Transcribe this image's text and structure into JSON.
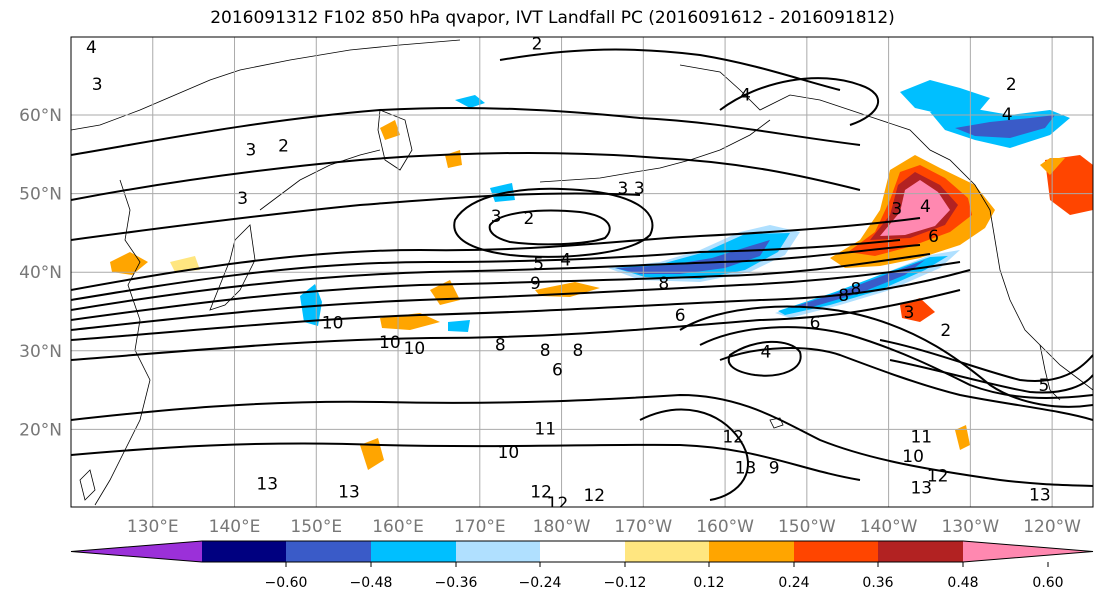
{
  "title": "2016091312 F102 850 hPa qvapor, IVT Landfall PC (2016091612 - 2016091812)",
  "map": {
    "lon_ticks": [
      "130°E",
      "140°E",
      "150°E",
      "160°E",
      "170°E",
      "180°W",
      "170°W",
      "160°W",
      "150°W",
      "140°W",
      "130°W",
      "120°W"
    ],
    "lat_ticks": [
      "60°N",
      "50°N",
      "40°N",
      "30°N",
      "20°N"
    ],
    "contour_labels": [
      {
        "text": "3",
        "lon": 123.2,
        "lat": 63.8
      },
      {
        "text": "2",
        "lon": 146.0,
        "lat": 56.0
      },
      {
        "text": "3",
        "lon": 142.0,
        "lat": 55.5
      },
      {
        "text": "3",
        "lon": 141.0,
        "lat": 49.3
      },
      {
        "text": "3",
        "lon": 172.0,
        "lat": 47.0
      },
      {
        "text": "2",
        "lon": 176.0,
        "lat": 46.8
      },
      {
        "text": "3",
        "lon": -172.5,
        "lat": 50.6
      },
      {
        "text": "3",
        "lon": -170.5,
        "lat": 50.6
      },
      {
        "text": "5",
        "lon": 177.2,
        "lat": 41.0
      },
      {
        "text": "4",
        "lon": -179.5,
        "lat": 41.5
      },
      {
        "text": "9",
        "lon": 176.8,
        "lat": 38.5
      },
      {
        "text": "8",
        "lon": -167.5,
        "lat": 38.5
      },
      {
        "text": "10",
        "lon": 152.0,
        "lat": 33.5
      },
      {
        "text": "10",
        "lon": 159.0,
        "lat": 31.0
      },
      {
        "text": "10",
        "lon": 162.0,
        "lat": 30.2
      },
      {
        "text": "8",
        "lon": 172.5,
        "lat": 30.7
      },
      {
        "text": "8",
        "lon": 178.0,
        "lat": 30.0
      },
      {
        "text": "8",
        "lon": -178.0,
        "lat": 30.0
      },
      {
        "text": "6",
        "lon": -165.5,
        "lat": 34.4
      },
      {
        "text": "4",
        "lon": -155.0,
        "lat": 29.8
      },
      {
        "text": "6",
        "lon": -180.5,
        "lat": 27.5
      },
      {
        "text": "11",
        "lon": 178.0,
        "lat": 20.0
      },
      {
        "text": "10",
        "lon": 173.5,
        "lat": 17.0
      },
      {
        "text": "12",
        "lon": -159.0,
        "lat": 19.0
      },
      {
        "text": "13",
        "lon": -157.5,
        "lat": 15.0
      },
      {
        "text": "9",
        "lon": -154.0,
        "lat": 15.0
      },
      {
        "text": "13",
        "lon": 144.0,
        "lat": 13.0
      },
      {
        "text": "13",
        "lon": 154.0,
        "lat": 12.0
      },
      {
        "text": "12",
        "lon": 179.5,
        "lat": 10.5
      },
      {
        "text": "12",
        "lon": 177.5,
        "lat": 12.0
      },
      {
        "text": "12",
        "lon": -176.0,
        "lat": 11.5
      },
      {
        "text": "11",
        "lon": -136.0,
        "lat": 19.0
      },
      {
        "text": "10",
        "lon": -137.0,
        "lat": 16.5
      },
      {
        "text": "12",
        "lon": -134.0,
        "lat": 14.0
      },
      {
        "text": "13",
        "lon": -136.0,
        "lat": 12.5
      },
      {
        "text": "13",
        "lon": -121.5,
        "lat": 11.6
      },
      {
        "text": "8",
        "lon": -145.5,
        "lat": 37.0
      },
      {
        "text": "6",
        "lon": -149.0,
        "lat": 33.5
      },
      {
        "text": "3",
        "lon": -137.5,
        "lat": 34.8
      },
      {
        "text": "2",
        "lon": -133.0,
        "lat": 32.5
      },
      {
        "text": "5",
        "lon": -121.0,
        "lat": 25.5
      },
      {
        "text": "4",
        "lon": -135.5,
        "lat": 48.3
      },
      {
        "text": "3",
        "lon": -139.0,
        "lat": 48.0
      },
      {
        "text": "6",
        "lon": -134.5,
        "lat": 44.5
      },
      {
        "text": "8",
        "lon": -144.0,
        "lat": 37.8
      },
      {
        "text": "2",
        "lon": 177.0,
        "lat": 69.0
      },
      {
        "text": "4",
        "lon": 122.5,
        "lat": 68.5
      },
      {
        "text": "4",
        "lon": -157.5,
        "lat": 62.5
      },
      {
        "text": "4",
        "lon": -125.5,
        "lat": 60.0
      },
      {
        "text": "2",
        "lon": -125.0,
        "lat": 63.8
      }
    ]
  },
  "colorbar": {
    "ticks": [
      "−0.60",
      "−0.48",
      "−0.36",
      "−0.24",
      "−0.12",
      "0.12",
      "0.24",
      "0.36",
      "0.48",
      "0.60"
    ],
    "colors": [
      "#9b30d9",
      "#000080",
      "#3a5bc8",
      "#00bfff",
      "#b0e0ff",
      "#ffffff",
      "#ffe680",
      "#ffa500",
      "#ff4500",
      "#b22222",
      "#ff88b0"
    ]
  }
}
